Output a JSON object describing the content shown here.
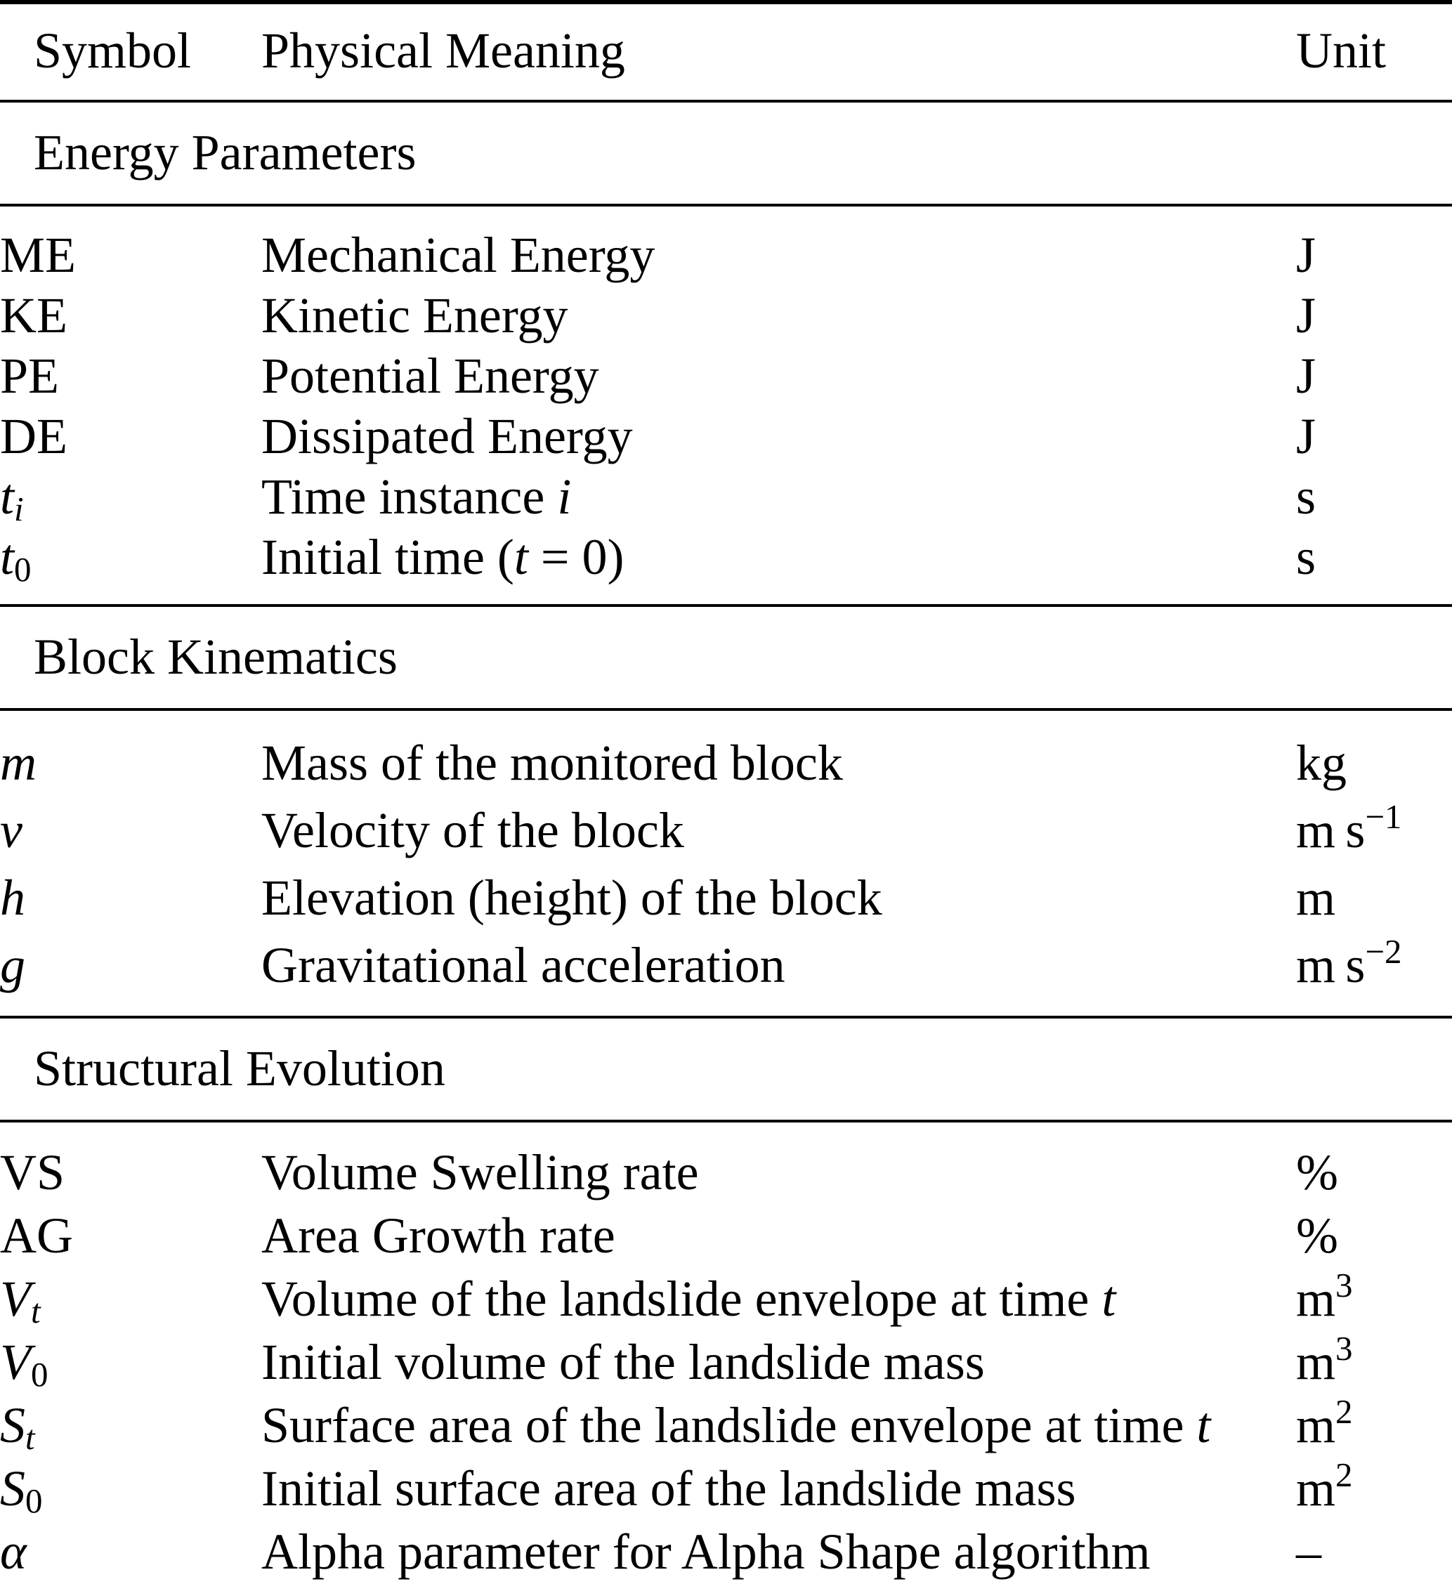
{
  "colors": {
    "text": "#000000",
    "background": "#ffffff",
    "rule": "#000000"
  },
  "table": {
    "columns": {
      "symbol": "Symbol",
      "meaning": "Physical Meaning",
      "unit": "Unit"
    },
    "sections": [
      {
        "title": "Energy Parameters",
        "rows": [
          {
            "sym": "ME",
            "desc": "Mechanical Energy",
            "unit": "J"
          },
          {
            "sym": "KE",
            "desc": "Kinetic Energy",
            "unit": "J"
          },
          {
            "sym": "PE",
            "desc": "Potential Energy",
            "unit": "J"
          },
          {
            "sym": "DE",
            "desc": "Dissipated Energy",
            "unit": "J"
          },
          {
            "sym": "t",
            "sym_sub": "i",
            "desc": "Time instance ",
            "desc_it": "i",
            "unit": "s"
          },
          {
            "sym": "t",
            "sym_sub": "0",
            "desc": "Initial time (",
            "desc_it": "t",
            "desc_post": " = 0)",
            "unit": "s"
          }
        ]
      },
      {
        "title": "Block Kinematics",
        "rows": [
          {
            "sym": "m",
            "desc": "Mass of the monitored block",
            "unit": "kg"
          },
          {
            "sym": "v",
            "desc": "Velocity of the block",
            "unit": "m s",
            "unit_sup": "−1"
          },
          {
            "sym": "h",
            "desc": "Elevation (height) of the block",
            "unit": "m"
          },
          {
            "sym": "g",
            "desc": "Gravitational acceleration",
            "unit": "m s",
            "unit_sup": "−2"
          }
        ]
      },
      {
        "title": "Structural Evolution",
        "rows": [
          {
            "sym": "VS",
            "desc": "Volume Swelling rate",
            "unit": "%"
          },
          {
            "sym": "AG",
            "desc": "Area Growth rate",
            "unit": "%"
          },
          {
            "sym": "V",
            "sym_sub": "t",
            "desc": "Volume of the landslide envelope at time ",
            "desc_it": "t",
            "unit": "m",
            "unit_sup": "3"
          },
          {
            "sym": "V",
            "sym_sub": "0",
            "desc": "Initial volume of the landslide mass",
            "unit": "m",
            "unit_sup": "3"
          },
          {
            "sym": "S",
            "sym_sub": "t",
            "desc": "Surface area of the landslide envelope at time ",
            "desc_it": "t",
            "unit": "m",
            "unit_sup": "2"
          },
          {
            "sym": "S",
            "sym_sub": "0",
            "desc": "Initial surface area of the landslide mass",
            "unit": "m",
            "unit_sup": "2"
          },
          {
            "sym": "α",
            "desc": "Alpha parameter for Alpha Shape algorithm",
            "unit": "–"
          }
        ]
      }
    ]
  }
}
